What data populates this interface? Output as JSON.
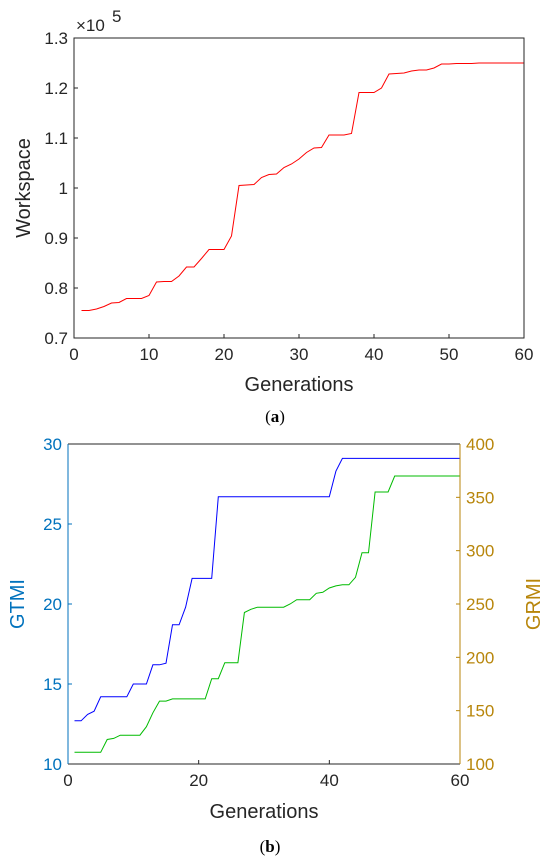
{
  "chart_data": [
    {
      "type": "line",
      "caption": {
        "open": "(",
        "letter": "a",
        "close": ")"
      },
      "xlabel": "Generations",
      "ylabel": "Workspace",
      "exponent": {
        "base": "×10",
        "power": "5"
      },
      "xlim": [
        0,
        60
      ],
      "ylim": [
        0.7,
        1.3
      ],
      "xticks": [
        "0",
        "10",
        "20",
        "30",
        "40",
        "50",
        "60"
      ],
      "yticks": [
        "0.7",
        "0.8",
        "0.9",
        "1",
        "1.1",
        "1.2",
        "1.3"
      ],
      "grid": false,
      "series": [
        {
          "color": "#ff0000",
          "x": [
            1,
            2,
            3,
            4,
            5,
            6,
            7,
            8,
            9,
            10,
            11,
            12,
            13,
            14,
            15,
            16,
            17,
            18,
            19,
            20,
            21,
            22,
            23,
            24,
            25,
            26,
            27,
            28,
            29,
            30,
            31,
            32,
            33,
            34,
            35,
            36,
            37,
            38,
            39,
            40,
            41,
            42,
            43,
            44,
            45,
            46,
            47,
            48,
            49,
            50,
            51,
            52,
            53,
            54,
            55,
            56,
            57,
            58,
            59,
            60
          ],
          "y": [
            0.755,
            0.755,
            0.758,
            0.763,
            0.77,
            0.771,
            0.779,
            0.779,
            0.779,
            0.785,
            0.812,
            0.813,
            0.813,
            0.824,
            0.842,
            0.842,
            0.859,
            0.877,
            0.877,
            0.877,
            0.904,
            1.005,
            1.006,
            1.007,
            1.021,
            1.027,
            1.028,
            1.041,
            1.048,
            1.058,
            1.071,
            1.08,
            1.081,
            1.106,
            1.106,
            1.106,
            1.109,
            1.191,
            1.191,
            1.191,
            1.2,
            1.228,
            1.229,
            1.23,
            1.234,
            1.236,
            1.236,
            1.24,
            1.248,
            1.248,
            1.249,
            1.249,
            1.249,
            1.25,
            1.25,
            1.25,
            1.25,
            1.25,
            1.25,
            1.25
          ]
        }
      ]
    },
    {
      "type": "line",
      "caption": {
        "open": "(",
        "letter": "b",
        "close": ")"
      },
      "xlabel": "Generations",
      "ylabel_left": "GTMI",
      "ylabel_right": "GRMI",
      "xlim": [
        0,
        60
      ],
      "ylim_left": [
        10,
        30
      ],
      "ylim_right": [
        100,
        400
      ],
      "xticks": [
        "0",
        "20",
        "40",
        "60"
      ],
      "yticks_left": [
        "10",
        "15",
        "20",
        "25",
        "30"
      ],
      "yticks_right": [
        "100",
        "150",
        "200",
        "250",
        "300",
        "350",
        "400"
      ],
      "left_color": "#0072bd",
      "right_color": "#b8860b",
      "grid": false,
      "series": [
        {
          "axis": "left",
          "color": "#0000ff",
          "x": [
            1,
            2,
            3,
            4,
            5,
            6,
            7,
            8,
            9,
            10,
            11,
            12,
            13,
            14,
            15,
            16,
            17,
            18,
            19,
            20,
            21,
            22,
            23,
            24,
            25,
            26,
            27,
            28,
            29,
            30,
            31,
            32,
            33,
            34,
            35,
            36,
            37,
            38,
            39,
            40,
            41,
            42,
            43,
            44,
            45,
            46,
            47,
            48,
            49,
            50,
            51,
            52,
            53,
            54,
            55,
            56,
            57,
            58,
            59,
            60
          ],
          "y": [
            12.7,
            12.7,
            13.1,
            13.3,
            14.2,
            14.2,
            14.2,
            14.2,
            14.2,
            15.0,
            15.0,
            15.0,
            16.2,
            16.2,
            16.3,
            18.7,
            18.7,
            19.8,
            21.6,
            21.6,
            21.6,
            21.6,
            26.7,
            26.7,
            26.7,
            26.7,
            26.7,
            26.7,
            26.7,
            26.7,
            26.7,
            26.7,
            26.7,
            26.7,
            26.7,
            26.7,
            26.7,
            26.7,
            26.7,
            26.7,
            28.3,
            29.1,
            29.1,
            29.1,
            29.1,
            29.1,
            29.1,
            29.1,
            29.1,
            29.1,
            29.1,
            29.1,
            29.1,
            29.1,
            29.1,
            29.1,
            29.1,
            29.1,
            29.1,
            29.1
          ]
        },
        {
          "axis": "right",
          "color": "#00bb00",
          "x": [
            1,
            2,
            3,
            4,
            5,
            6,
            7,
            8,
            9,
            10,
            11,
            12,
            13,
            14,
            15,
            16,
            17,
            18,
            19,
            20,
            21,
            22,
            23,
            24,
            25,
            26,
            27,
            28,
            29,
            30,
            31,
            32,
            33,
            34,
            35,
            36,
            37,
            38,
            39,
            40,
            41,
            42,
            43,
            44,
            45,
            46,
            47,
            48,
            49,
            50,
            51,
            52,
            53,
            54,
            55,
            56,
            57,
            58,
            59,
            60
          ],
          "y": [
            111,
            111,
            111,
            111,
            111,
            123,
            124,
            127,
            127,
            127,
            127,
            135,
            148,
            159,
            159,
            161,
            161,
            161,
            161,
            161,
            161,
            180,
            180,
            195,
            195,
            195,
            242,
            245,
            247,
            247,
            247,
            247,
            247,
            250,
            254,
            254,
            254,
            260,
            261,
            265,
            267,
            268,
            268,
            275,
            298,
            298,
            355,
            355,
            355,
            370,
            370,
            370,
            370,
            370,
            370,
            370,
            370,
            370,
            370,
            370
          ]
        }
      ]
    }
  ]
}
